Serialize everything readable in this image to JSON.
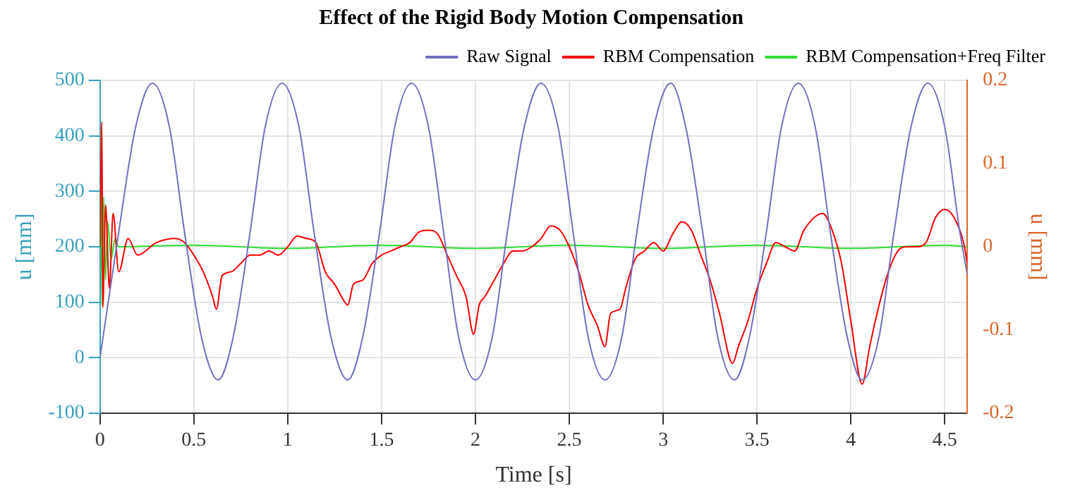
{
  "chart_data": {
    "type": "line",
    "title": "Effect of the Rigid Body Motion Compensation",
    "xlabel": "Time [s]",
    "ylabel": "u [mm]",
    "y2label": "u [mm]",
    "xlim": [
      0,
      4.62
    ],
    "xticks": [
      0,
      0.5,
      1,
      1.5,
      2,
      2.5,
      3,
      3.5,
      4,
      4.5
    ],
    "ylim": [
      -100,
      500
    ],
    "yticks": [
      -100,
      0,
      100,
      200,
      300,
      400,
      500
    ],
    "y2lim": [
      -0.2,
      0.2
    ],
    "y2ticks": [
      -0.2,
      -0.1,
      0,
      0.1,
      0.2
    ],
    "grid": true,
    "legend": "top right",
    "marker": "none",
    "line_style": "solid",
    "series": [
      {
        "name": "Raw Signal",
        "color": "#7070c0",
        "x": [
          0,
          0.1,
          0.19,
          0.28,
          0.37,
          0.45,
          0.54,
          0.63,
          0.71,
          0.8,
          0.88,
          0.97,
          1.06,
          1.14,
          1.23,
          1.32,
          1.4,
          1.49,
          1.57,
          1.66,
          1.75,
          1.83,
          1.91,
          2.0,
          2.09,
          2.17,
          2.26,
          2.35,
          2.44,
          2.52,
          2.6,
          2.69,
          2.78,
          2.86,
          2.95,
          3.04,
          3.12,
          3.21,
          3.29,
          3.38,
          3.46,
          3.55,
          3.63,
          3.72,
          3.81,
          3.89,
          3.98,
          4.06,
          4.15,
          4.23,
          4.32,
          4.41,
          4.5,
          4.58,
          4.62
        ],
        "values": [
          0,
          227,
          416,
          495,
          416,
          227,
          38,
          -40,
          38,
          227,
          416,
          495,
          416,
          227,
          38,
          -40,
          38,
          227,
          416,
          495,
          416,
          227,
          38,
          -40,
          38,
          227,
          416,
          495,
          416,
          227,
          38,
          -40,
          38,
          227,
          416,
          495,
          416,
          227,
          38,
          -40,
          38,
          227,
          416,
          495,
          416,
          227,
          38,
          -40,
          38,
          227,
          416,
          495,
          416,
          227,
          150
        ]
      },
      {
        "name": "RBM Compensation",
        "color": "#ff0000",
        "axis": "y2",
        "x": [
          0,
          0.01,
          0.015,
          0.03,
          0.05,
          0.07,
          0.1,
          0.15,
          0.2,
          0.3,
          0.4,
          0.45,
          0.5,
          0.55,
          0.6,
          0.62,
          0.65,
          0.7,
          0.75,
          0.8,
          0.85,
          0.9,
          0.95,
          1.0,
          1.05,
          1.1,
          1.15,
          1.2,
          1.25,
          1.3,
          1.32,
          1.35,
          1.4,
          1.45,
          1.5,
          1.55,
          1.6,
          1.65,
          1.7,
          1.75,
          1.8,
          1.85,
          1.9,
          1.95,
          1.99,
          2.02,
          2.05,
          2.1,
          2.15,
          2.2,
          2.25,
          2.3,
          2.35,
          2.4,
          2.45,
          2.5,
          2.55,
          2.6,
          2.65,
          2.69,
          2.72,
          2.77,
          2.8,
          2.85,
          2.9,
          2.95,
          3.0,
          3.05,
          3.1,
          3.15,
          3.2,
          3.25,
          3.3,
          3.37,
          3.4,
          3.45,
          3.5,
          3.55,
          3.6,
          3.65,
          3.7,
          3.75,
          3.85,
          3.9,
          3.95,
          4.0,
          4.06,
          4.1,
          4.15,
          4.2,
          4.25,
          4.3,
          4.35,
          4.4,
          4.45,
          4.5,
          4.55,
          4.6,
          4.62
        ],
        "values": [
          0,
          0.15,
          -0.073,
          0.05,
          -0.05,
          0.04,
          -0.03,
          0.01,
          -0.01,
          0.005,
          0.01,
          0.005,
          -0.01,
          -0.03,
          -0.06,
          -0.075,
          -0.035,
          -0.03,
          -0.02,
          -0.01,
          -0.01,
          -0.005,
          -0.01,
          0,
          0.013,
          0.01,
          0.005,
          -0.03,
          -0.045,
          -0.065,
          -0.07,
          -0.045,
          -0.04,
          -0.02,
          -0.01,
          -0.005,
          0,
          0.005,
          0.018,
          0.02,
          0.015,
          -0.01,
          -0.035,
          -0.06,
          -0.105,
          -0.07,
          -0.06,
          -0.04,
          -0.02,
          -0.005,
          -0.005,
          0,
          0.01,
          0.025,
          0.02,
          0,
          -0.03,
          -0.07,
          -0.095,
          -0.12,
          -0.08,
          -0.075,
          -0.05,
          -0.015,
          -0.005,
          0.005,
          -0.005,
          0.015,
          0.03,
          0.02,
          -0.01,
          -0.04,
          -0.08,
          -0.14,
          -0.12,
          -0.09,
          -0.05,
          -0.02,
          0.005,
          0,
          -0.005,
          0.02,
          0.04,
          0.02,
          -0.02,
          -0.09,
          -0.165,
          -0.12,
          -0.07,
          -0.03,
          -0.005,
          0,
          0,
          0.005,
          0.035,
          0.045,
          0.035,
          0.005,
          -0.02
        ]
      },
      {
        "name": "RBM Compensation+Freq Filter",
        "color": "#33dd33",
        "axis": "y2",
        "x": [
          0,
          0.005,
          0.01,
          0.02,
          0.03,
          0.04,
          0.06,
          0.08,
          0.1,
          0.5,
          1.0,
          1.5,
          2.0,
          2.5,
          3.0,
          3.5,
          4.0,
          4.5,
          4.62
        ],
        "values": [
          0,
          0.14,
          -0.07,
          0.06,
          -0.04,
          0.03,
          -0.015,
          0.01,
          0,
          0.002,
          -0.002,
          0.002,
          -0.002,
          0.002,
          -0.002,
          0.002,
          -0.002,
          0.002,
          0
        ]
      }
    ]
  }
}
